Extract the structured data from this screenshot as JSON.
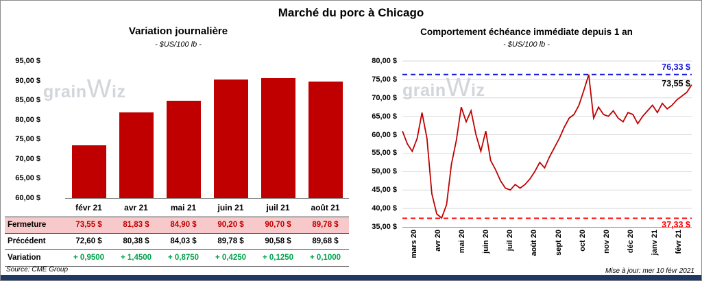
{
  "page_title": "Marché du porc à Chicago",
  "watermark": {
    "parts": [
      "grain",
      "W",
      "iz"
    ]
  },
  "footer": {
    "source": "Source: CME Group",
    "updated": "Mise à jour: mer 10 févr 2021"
  },
  "colors": {
    "bar_fill": "#C00000",
    "series_line": "#C00000",
    "high_dashed": "#1515E0",
    "low_dashed": "#FF0000",
    "fermeture_bg": "#F8C9CA",
    "fermeture_text": "#C00000",
    "precedent_text": "#000000",
    "variation_text": "#00A14B",
    "gridline": "#D9D9D9",
    "axis_line": "#808080",
    "bottom_bar": "#1F3864",
    "watermark_text": "#C6CCD3"
  },
  "chart_data": [
    {
      "type": "bar",
      "title": "Variation journalière",
      "subtitle": "- $US/100 lb -",
      "categories": [
        "févr 21",
        "avr 21",
        "mai 21",
        "juin 21",
        "juil 21",
        "août 21"
      ],
      "values": [
        73.55,
        81.83,
        84.9,
        90.2,
        90.7,
        89.78
      ],
      "ylim": [
        60,
        95
      ],
      "ytick_step": 5,
      "yticks": [
        "95,00 $",
        "90,00 $",
        "85,00 $",
        "80,00 $",
        "75,00 $",
        "70,00 $",
        "65,00 $",
        "60,00 $"
      ],
      "grid": false,
      "legend": "none",
      "table": {
        "rows": [
          {
            "label": "Fermeture",
            "values": [
              "73,55 $",
              "81,83 $",
              "84,90 $",
              "90,20 $",
              "90,70 $",
              "89,78 $"
            ]
          },
          {
            "label": "Précédent",
            "values": [
              "72,60 $",
              "80,38 $",
              "84,03 $",
              "89,78 $",
              "90,58 $",
              "89,68 $"
            ]
          },
          {
            "label": "Variation",
            "values": [
              "+ 0,9500",
              "+ 1,4500",
              "+ 0,8750",
              "+ 0,4250",
              "+ 0,1250",
              "+ 0,1000"
            ]
          }
        ]
      }
    },
    {
      "type": "line",
      "title": "Comportement échéance immédiate depuis 1 an",
      "subtitle": "- $US/100 lb -",
      "x_categories": [
        "mars 20",
        "avr 20",
        "mai 20",
        "juin 20",
        "juil 20",
        "août 20",
        "sept 20",
        "oct 20",
        "nov 20",
        "déc 20",
        "janv 21",
        "févr 21"
      ],
      "values": [
        61,
        57.5,
        55.5,
        59,
        66,
        59,
        44,
        38.5,
        37.4,
        41,
        52,
        58.5,
        67.5,
        63.5,
        66.5,
        60,
        55.5,
        61,
        53,
        50.5,
        47.5,
        45.5,
        45,
        46.5,
        45.5,
        46.5,
        48,
        50,
        52.5,
        51,
        54,
        56.5,
        59,
        62,
        64.5,
        65.5,
        68,
        72,
        76.3,
        64.5,
        67.5,
        65.5,
        65,
        66.5,
        64.5,
        63.5,
        66,
        65.5,
        63,
        65,
        66.5,
        68,
        66,
        68.5,
        67,
        68,
        69.5,
        70.5,
        71.5,
        73.55
      ],
      "ylim": [
        35,
        80
      ],
      "ytick_step": 5,
      "yticks": [
        "80,00 $",
        "75,00 $",
        "70,00 $",
        "65,00 $",
        "60,00 $",
        "55,00 $",
        "50,00 $",
        "45,00 $",
        "40,00 $",
        "35,00 $"
      ],
      "grid": true,
      "legend": "none",
      "annotations": {
        "high": 76.33,
        "high_label": "76,33 $",
        "last": 73.55,
        "last_label": "73,55 $",
        "low": 37.33,
        "low_label": "37,33 $"
      }
    }
  ]
}
